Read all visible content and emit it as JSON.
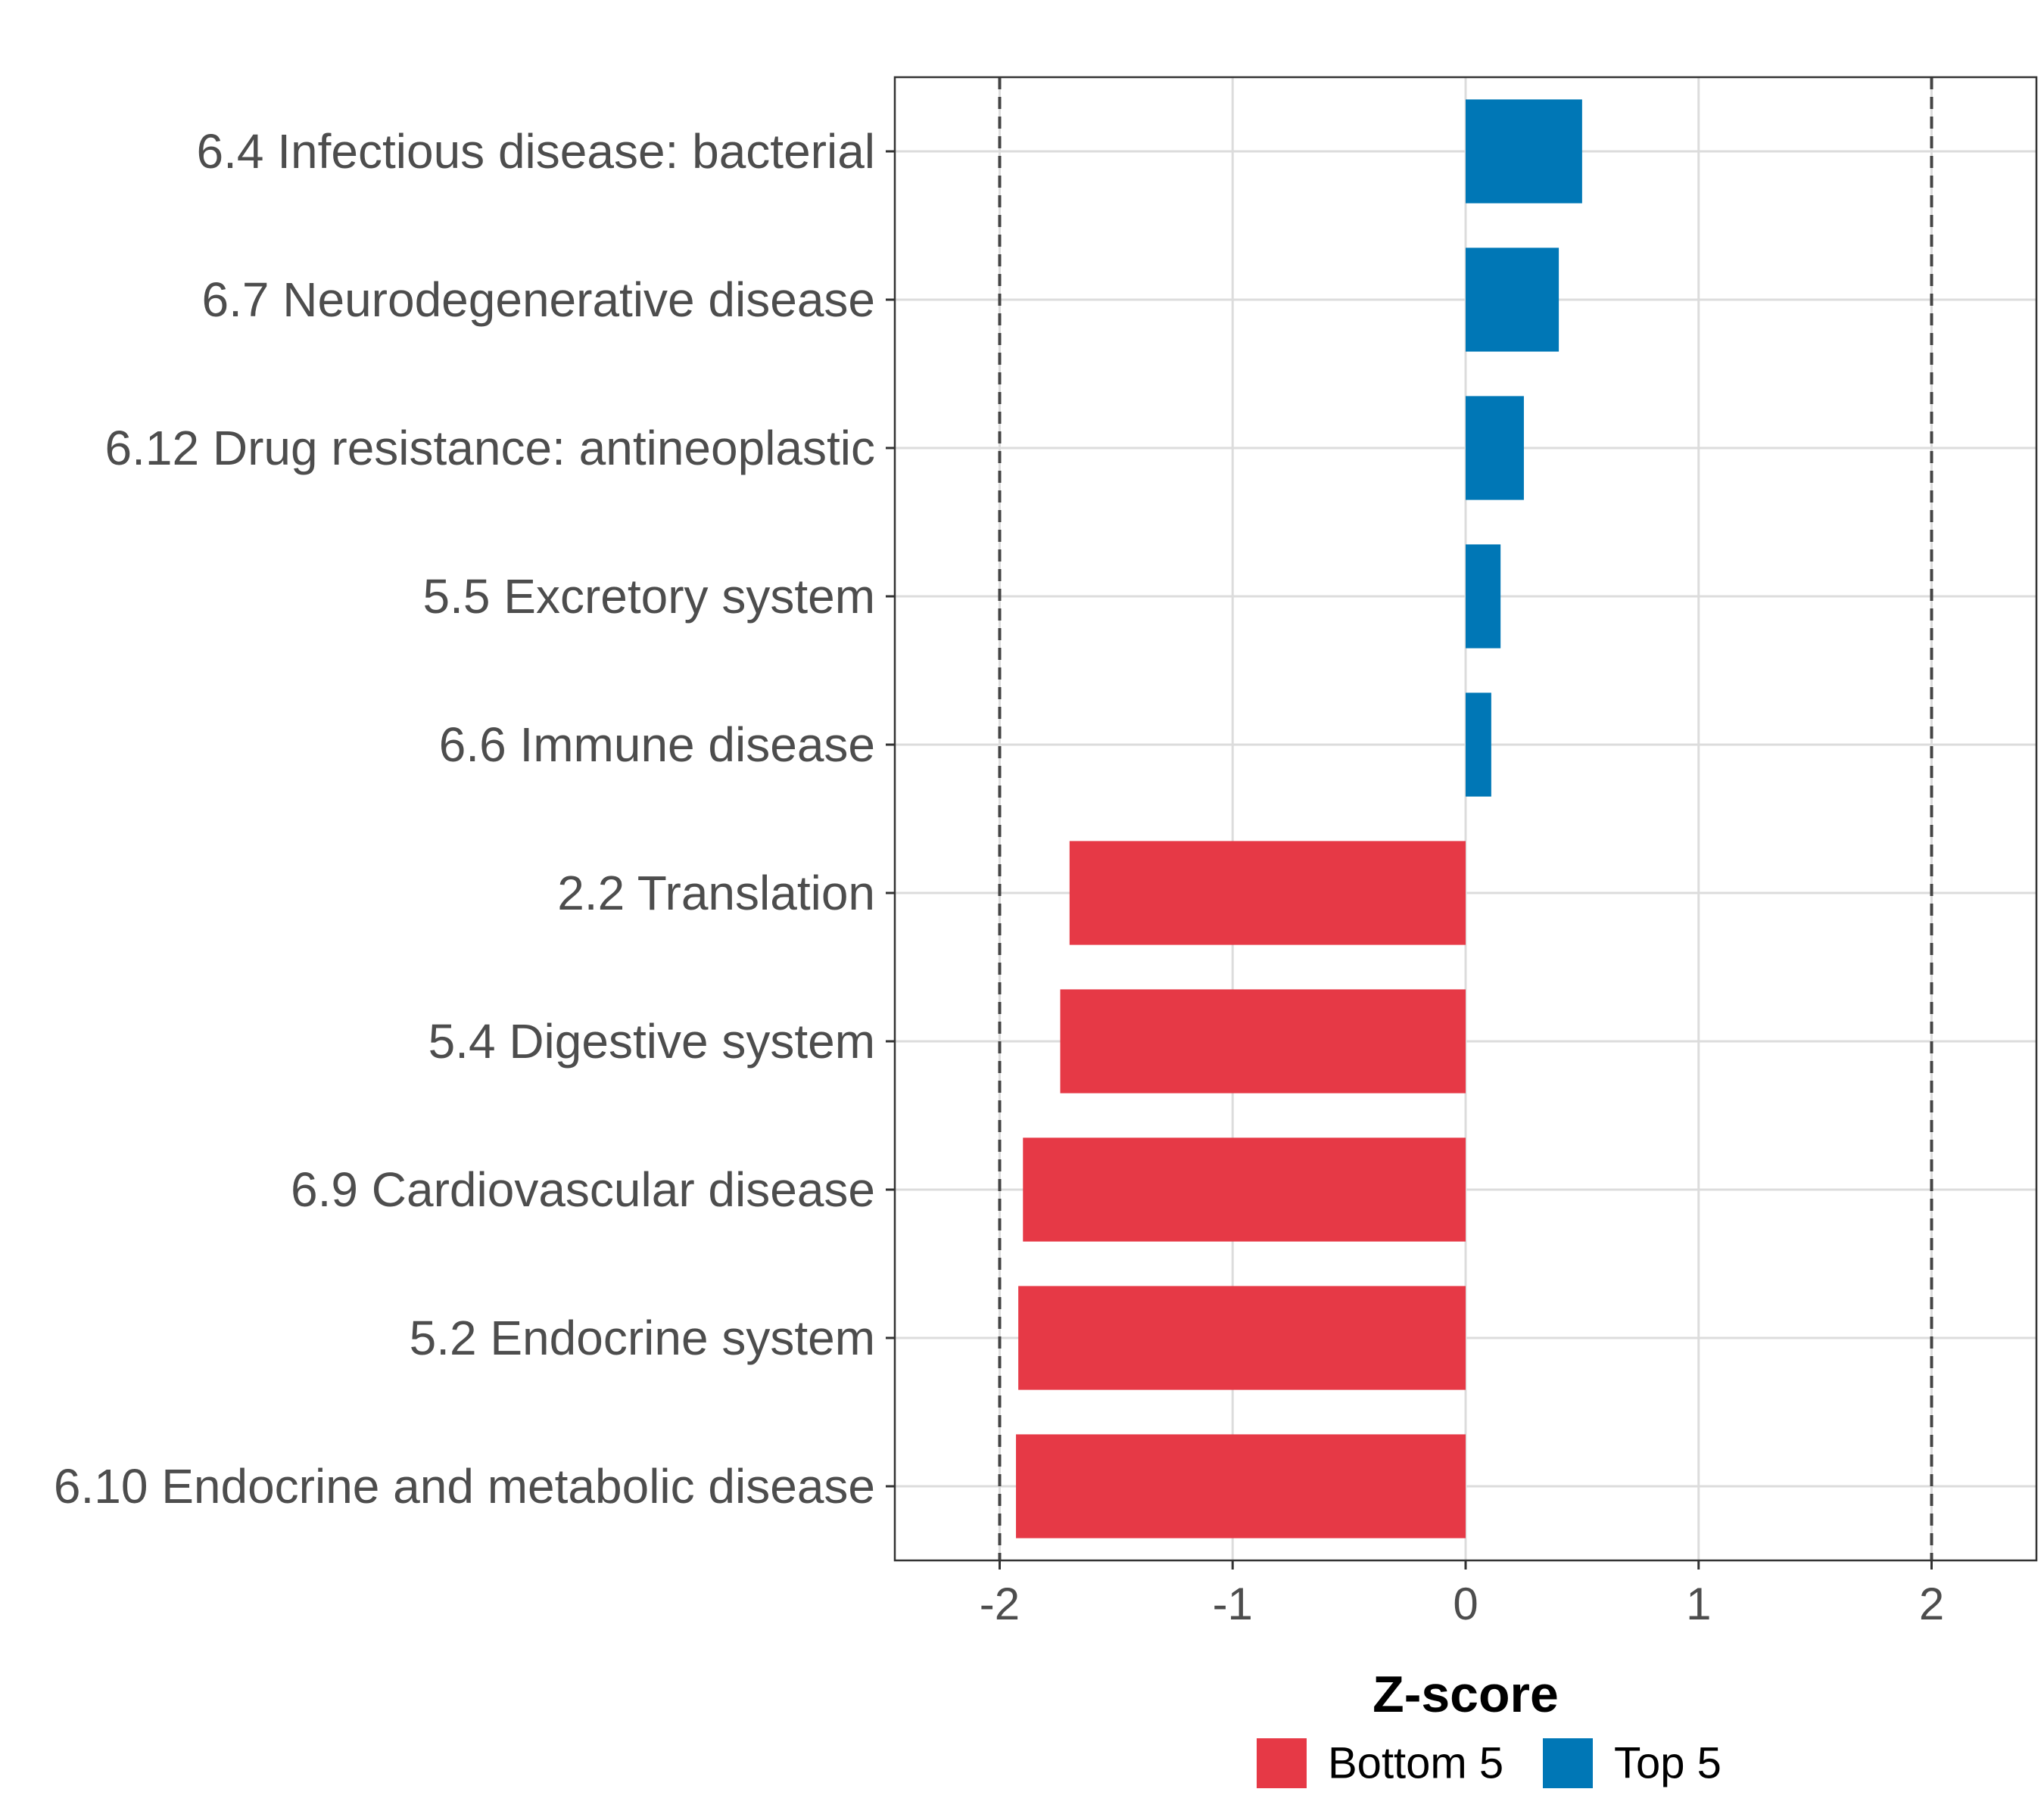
{
  "chart_data": {
    "type": "bar",
    "orientation": "horizontal",
    "xlabel": "Z-score",
    "ylabel": "",
    "title": "",
    "xlim": [
      -2.45,
      2.45
    ],
    "xticks": [
      -2,
      -1,
      0,
      1,
      2
    ],
    "xtick_labels": [
      "-2",
      "-1",
      "0",
      "1",
      "2"
    ],
    "reference_lines": [
      -2,
      2
    ],
    "grid": true,
    "categories": [
      "6.4 Infectious disease: bacterial",
      "6.7 Neurodegenerative disease",
      "6.12 Drug resistance: antineoplastic",
      "5.5 Excretory system",
      "6.6 Immune disease",
      "2.2 Translation",
      "5.4 Digestive system",
      "6.9 Cardiovascular disease",
      "5.2 Endocrine system",
      "6.10 Endocrine and metabolic disease"
    ],
    "values": [
      0.5,
      0.4,
      0.25,
      0.15,
      0.11,
      -1.7,
      -1.74,
      -1.9,
      -1.92,
      -1.93
    ],
    "groups": [
      "Top 5",
      "Top 5",
      "Top 5",
      "Top 5",
      "Top 5",
      "Bottom 5",
      "Bottom 5",
      "Bottom 5",
      "Bottom 5",
      "Bottom 5"
    ],
    "legend": {
      "position": "bottom",
      "entries": [
        {
          "label": "Bottom 5",
          "color": "#e63946"
        },
        {
          "label": "Top 5",
          "color": "#0077b6"
        }
      ]
    }
  }
}
